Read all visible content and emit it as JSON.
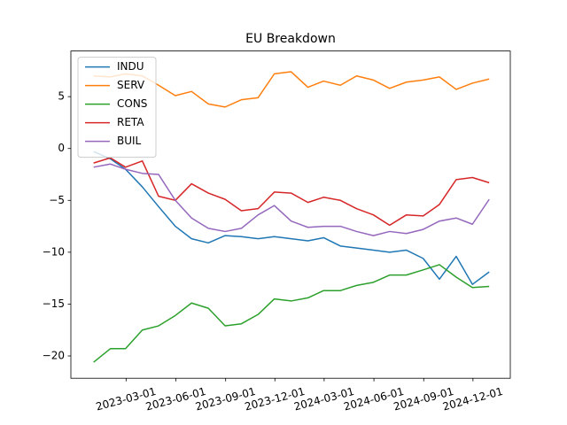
{
  "chart_data": {
    "type": "line",
    "title": "EU Breakdown",
    "x": [
      "2022-12-31",
      "2023-01-31",
      "2023-02-28",
      "2023-03-31",
      "2023-04-30",
      "2023-05-31",
      "2023-06-30",
      "2023-07-31",
      "2023-08-31",
      "2023-09-30",
      "2023-10-31",
      "2023-11-30",
      "2023-12-31",
      "2024-01-31",
      "2024-02-29",
      "2024-03-31",
      "2024-04-30",
      "2024-05-31",
      "2024-06-30",
      "2024-07-31",
      "2024-08-31",
      "2024-09-30",
      "2024-10-31",
      "2024-11-30",
      "2024-12-31"
    ],
    "series": [
      {
        "name": "INDU",
        "color": "#1f77b4",
        "values": [
          -0.3,
          -1.0,
          -2.0,
          -3.7,
          -5.6,
          -7.5,
          -8.7,
          -9.1,
          -8.4,
          -8.5,
          -8.7,
          -8.5,
          -8.7,
          -8.9,
          -8.6,
          -9.4,
          -9.6,
          -9.8,
          -10.0,
          -9.8,
          -10.6,
          -12.6,
          -10.4,
          -13.1,
          -11.9
        ]
      },
      {
        "name": "SERV",
        "color": "#ff7f0e",
        "values": [
          7.0,
          6.9,
          7.2,
          7.0,
          6.1,
          5.1,
          5.5,
          4.3,
          4.0,
          4.7,
          4.9,
          7.2,
          7.4,
          5.9,
          6.5,
          6.1,
          7.0,
          6.6,
          5.8,
          6.4,
          6.6,
          6.9,
          5.7,
          6.3,
          6.7
        ]
      },
      {
        "name": "CONS",
        "color": "#2ca02c",
        "values": [
          -20.6,
          -19.3,
          -19.3,
          -17.5,
          -17.1,
          -16.1,
          -14.9,
          -15.4,
          -17.1,
          -16.9,
          -16.0,
          -14.5,
          -14.7,
          -14.4,
          -13.7,
          -13.7,
          -13.2,
          -12.9,
          -12.2,
          -12.2,
          -11.7,
          -11.2,
          -12.4,
          -13.4,
          -13.3
        ]
      },
      {
        "name": "RETA",
        "color": "#d62728",
        "values": [
          -1.4,
          -0.9,
          -1.8,
          -1.2,
          -4.6,
          -5.0,
          -3.4,
          -4.3,
          -4.9,
          -6.0,
          -5.8,
          -4.2,
          -4.3,
          -5.2,
          -4.7,
          -5.0,
          -5.8,
          -6.4,
          -7.4,
          -6.4,
          -6.5,
          -5.4,
          -3.0,
          -2.8,
          -3.3
        ]
      },
      {
        "name": "BUIL",
        "color": "#9467bd",
        "values": [
          -1.8,
          -1.5,
          -2.0,
          -2.4,
          -2.5,
          -5.0,
          -6.7,
          -7.7,
          -8.0,
          -7.7,
          -6.4,
          -5.5,
          -7.0,
          -7.6,
          -7.5,
          -7.5,
          -8.0,
          -8.4,
          -8.0,
          -8.2,
          -7.8,
          -7.0,
          -6.7,
          -7.3,
          -4.9
        ]
      }
    ],
    "xlim": [
      "2022-11-19",
      "2025-02-08"
    ],
    "xticks": [
      "2023-03-01",
      "2023-06-01",
      "2023-09-01",
      "2023-12-01",
      "2024-03-01",
      "2024-06-01",
      "2024-09-01",
      "2024-12-01"
    ],
    "ylim": [
      -22.15,
      9.4
    ],
    "yticks": [
      {
        "value": -20,
        "label": "−20"
      },
      {
        "value": -15,
        "label": "−15"
      },
      {
        "value": -10,
        "label": "−10"
      },
      {
        "value": -5,
        "label": "−5"
      },
      0,
      5
    ],
    "legend": "upper left",
    "grid": false
  }
}
